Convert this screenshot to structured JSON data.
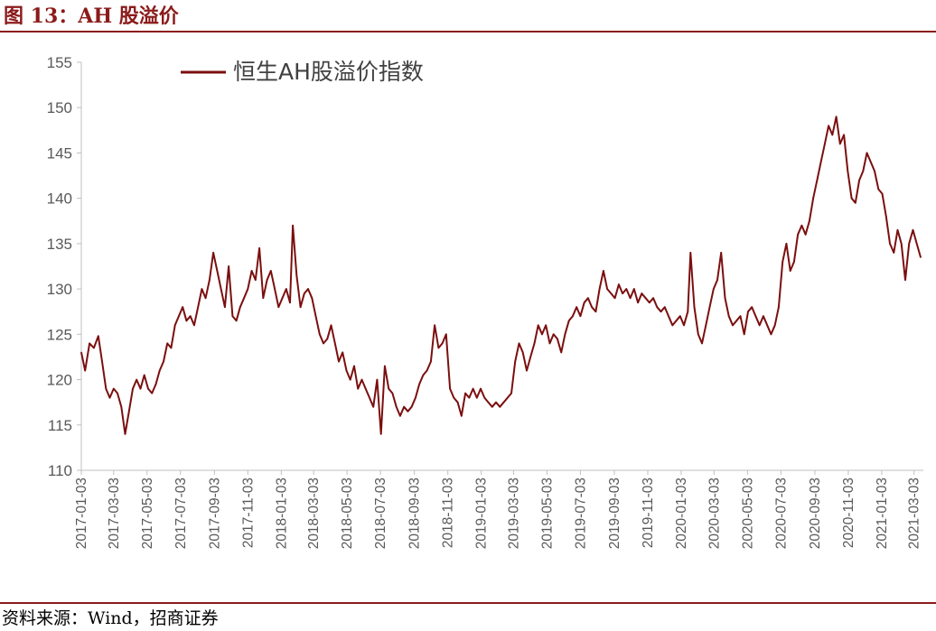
{
  "header": {
    "title": "图 13：AH 股溢价"
  },
  "footer": {
    "source": "资料来源：Wind，招商证券"
  },
  "colors": {
    "accent": "#8B1A1A",
    "series": "#7B0F0F",
    "axis": "#BFBFBF",
    "tick_text": "#595959"
  },
  "chart_data": {
    "type": "line",
    "title": "",
    "xlabel": "",
    "ylabel": "",
    "ylim": [
      110,
      155
    ],
    "yticks": [
      110,
      115,
      120,
      125,
      130,
      135,
      140,
      145,
      150,
      155
    ],
    "xlim": [
      "2017-01-03",
      "2021-03-20"
    ],
    "xticks": [
      "2017-01-03",
      "2017-03-03",
      "2017-05-03",
      "2017-07-03",
      "2017-09-03",
      "2017-11-03",
      "2018-01-03",
      "2018-03-03",
      "2018-05-03",
      "2018-07-03",
      "2018-09-03",
      "2018-11-03",
      "2019-01-03",
      "2019-03-03",
      "2019-05-03",
      "2019-07-03",
      "2019-09-03",
      "2019-11-03",
      "2020-01-03",
      "2020-03-03",
      "2020-05-03",
      "2020-07-03",
      "2020-09-03",
      "2020-11-03",
      "2021-01-03",
      "2021-03-03"
    ],
    "grid": false,
    "legend": "top-left",
    "series": [
      {
        "name": "恒生AH股溢价指数",
        "points": [
          [
            "2017-01-03",
            123.0
          ],
          [
            "2017-01-10",
            121.0
          ],
          [
            "2017-01-18",
            124.0
          ],
          [
            "2017-01-26",
            123.5
          ],
          [
            "2017-02-03",
            124.8
          ],
          [
            "2017-02-10",
            122.0
          ],
          [
            "2017-02-17",
            119.0
          ],
          [
            "2017-02-24",
            118.0
          ],
          [
            "2017-03-03",
            119.0
          ],
          [
            "2017-03-10",
            118.5
          ],
          [
            "2017-03-17",
            117.0
          ],
          [
            "2017-03-24",
            114.0
          ],
          [
            "2017-03-31",
            116.5
          ],
          [
            "2017-04-07",
            119.0
          ],
          [
            "2017-04-14",
            120.0
          ],
          [
            "2017-04-21",
            119.0
          ],
          [
            "2017-04-28",
            120.5
          ],
          [
            "2017-05-05",
            119.0
          ],
          [
            "2017-05-12",
            118.5
          ],
          [
            "2017-05-19",
            119.5
          ],
          [
            "2017-05-26",
            121.0
          ],
          [
            "2017-06-02",
            122.0
          ],
          [
            "2017-06-09",
            124.0
          ],
          [
            "2017-06-16",
            123.5
          ],
          [
            "2017-06-23",
            126.0
          ],
          [
            "2017-06-30",
            127.0
          ],
          [
            "2017-07-07",
            128.0
          ],
          [
            "2017-07-14",
            126.5
          ],
          [
            "2017-07-21",
            127.0
          ],
          [
            "2017-07-28",
            126.0
          ],
          [
            "2017-08-04",
            128.0
          ],
          [
            "2017-08-11",
            130.0
          ],
          [
            "2017-08-18",
            129.0
          ],
          [
            "2017-08-25",
            131.0
          ],
          [
            "2017-09-01",
            134.0
          ],
          [
            "2017-09-08",
            132.0
          ],
          [
            "2017-09-15",
            130.0
          ],
          [
            "2017-09-22",
            128.0
          ],
          [
            "2017-09-29",
            132.5
          ],
          [
            "2017-10-06",
            127.0
          ],
          [
            "2017-10-13",
            126.5
          ],
          [
            "2017-10-20",
            128.0
          ],
          [
            "2017-10-27",
            129.0
          ],
          [
            "2017-11-03",
            130.0
          ],
          [
            "2017-11-10",
            132.0
          ],
          [
            "2017-11-17",
            131.0
          ],
          [
            "2017-11-24",
            134.5
          ],
          [
            "2017-12-01",
            129.0
          ],
          [
            "2017-12-08",
            131.0
          ],
          [
            "2017-12-15",
            132.0
          ],
          [
            "2017-12-22",
            130.0
          ],
          [
            "2017-12-29",
            128.0
          ],
          [
            "2018-01-05",
            129.0
          ],
          [
            "2018-01-12",
            130.0
          ],
          [
            "2018-01-19",
            128.5
          ],
          [
            "2018-01-24",
            137.0
          ],
          [
            "2018-01-31",
            131.5
          ],
          [
            "2018-02-07",
            128.0
          ],
          [
            "2018-02-14",
            129.5
          ],
          [
            "2018-02-21",
            130.0
          ],
          [
            "2018-02-28",
            129.0
          ],
          [
            "2018-03-07",
            127.0
          ],
          [
            "2018-03-14",
            125.0
          ],
          [
            "2018-03-21",
            124.0
          ],
          [
            "2018-03-28",
            124.5
          ],
          [
            "2018-04-04",
            126.0
          ],
          [
            "2018-04-11",
            124.0
          ],
          [
            "2018-04-18",
            122.0
          ],
          [
            "2018-04-25",
            123.0
          ],
          [
            "2018-05-02",
            121.0
          ],
          [
            "2018-05-09",
            120.0
          ],
          [
            "2018-05-16",
            121.5
          ],
          [
            "2018-05-23",
            119.0
          ],
          [
            "2018-05-30",
            120.0
          ],
          [
            "2018-06-06",
            119.0
          ],
          [
            "2018-06-13",
            118.0
          ],
          [
            "2018-06-20",
            117.0
          ],
          [
            "2018-06-27",
            120.0
          ],
          [
            "2018-07-04",
            114.0
          ],
          [
            "2018-07-11",
            121.5
          ],
          [
            "2018-07-18",
            119.0
          ],
          [
            "2018-07-25",
            118.5
          ],
          [
            "2018-08-01",
            117.0
          ],
          [
            "2018-08-08",
            116.0
          ],
          [
            "2018-08-15",
            117.0
          ],
          [
            "2018-08-22",
            116.5
          ],
          [
            "2018-08-29",
            117.0
          ],
          [
            "2018-09-05",
            118.0
          ],
          [
            "2018-09-12",
            119.5
          ],
          [
            "2018-09-19",
            120.5
          ],
          [
            "2018-09-26",
            121.0
          ],
          [
            "2018-10-03",
            122.0
          ],
          [
            "2018-10-10",
            126.0
          ],
          [
            "2018-10-17",
            123.5
          ],
          [
            "2018-10-24",
            124.0
          ],
          [
            "2018-10-31",
            125.0
          ],
          [
            "2018-11-07",
            119.0
          ],
          [
            "2018-11-14",
            118.0
          ],
          [
            "2018-11-21",
            117.5
          ],
          [
            "2018-11-28",
            116.0
          ],
          [
            "2018-12-05",
            118.5
          ],
          [
            "2018-12-12",
            118.0
          ],
          [
            "2018-12-19",
            119.0
          ],
          [
            "2018-12-26",
            118.0
          ],
          [
            "2019-01-02",
            119.0
          ],
          [
            "2019-01-09",
            118.0
          ],
          [
            "2019-01-16",
            117.5
          ],
          [
            "2019-01-23",
            117.0
          ],
          [
            "2019-01-30",
            117.5
          ],
          [
            "2019-02-06",
            117.0
          ],
          [
            "2019-02-13",
            117.5
          ],
          [
            "2019-02-20",
            118.0
          ],
          [
            "2019-02-27",
            118.5
          ],
          [
            "2019-03-06",
            122.0
          ],
          [
            "2019-03-13",
            124.0
          ],
          [
            "2019-03-20",
            123.0
          ],
          [
            "2019-03-27",
            121.0
          ],
          [
            "2019-04-03",
            122.5
          ],
          [
            "2019-04-10",
            124.0
          ],
          [
            "2019-04-17",
            126.0
          ],
          [
            "2019-04-24",
            125.0
          ],
          [
            "2019-05-01",
            126.0
          ],
          [
            "2019-05-08",
            124.0
          ],
          [
            "2019-05-15",
            125.0
          ],
          [
            "2019-05-22",
            124.5
          ],
          [
            "2019-05-29",
            123.0
          ],
          [
            "2019-06-05",
            125.0
          ],
          [
            "2019-06-12",
            126.5
          ],
          [
            "2019-06-19",
            127.0
          ],
          [
            "2019-06-26",
            128.0
          ],
          [
            "2019-07-03",
            127.0
          ],
          [
            "2019-07-10",
            128.5
          ],
          [
            "2019-07-17",
            129.0
          ],
          [
            "2019-07-24",
            128.0
          ],
          [
            "2019-07-31",
            127.5
          ],
          [
            "2019-08-07",
            130.0
          ],
          [
            "2019-08-14",
            132.0
          ],
          [
            "2019-08-21",
            130.0
          ],
          [
            "2019-08-28",
            129.5
          ],
          [
            "2019-09-04",
            129.0
          ],
          [
            "2019-09-11",
            130.5
          ],
          [
            "2019-09-18",
            129.5
          ],
          [
            "2019-09-25",
            130.0
          ],
          [
            "2019-10-02",
            129.0
          ],
          [
            "2019-10-09",
            130.0
          ],
          [
            "2019-10-16",
            128.5
          ],
          [
            "2019-10-23",
            129.5
          ],
          [
            "2019-10-30",
            129.0
          ],
          [
            "2019-11-06",
            128.5
          ],
          [
            "2019-11-13",
            129.0
          ],
          [
            "2019-11-20",
            128.0
          ],
          [
            "2019-11-27",
            127.5
          ],
          [
            "2019-12-04",
            128.0
          ],
          [
            "2019-12-11",
            127.0
          ],
          [
            "2019-12-18",
            126.0
          ],
          [
            "2019-12-25",
            126.5
          ],
          [
            "2020-01-01",
            127.0
          ],
          [
            "2020-01-08",
            126.0
          ],
          [
            "2020-01-15",
            127.5
          ],
          [
            "2020-01-20",
            134.0
          ],
          [
            "2020-01-27",
            128.0
          ],
          [
            "2020-02-03",
            125.0
          ],
          [
            "2020-02-10",
            124.0
          ],
          [
            "2020-02-17",
            126.0
          ],
          [
            "2020-02-24",
            128.0
          ],
          [
            "2020-03-02",
            130.0
          ],
          [
            "2020-03-09",
            131.0
          ],
          [
            "2020-03-16",
            134.0
          ],
          [
            "2020-03-23",
            129.0
          ],
          [
            "2020-03-30",
            127.0
          ],
          [
            "2020-04-06",
            126.0
          ],
          [
            "2020-04-13",
            126.5
          ],
          [
            "2020-04-20",
            127.0
          ],
          [
            "2020-04-27",
            125.0
          ],
          [
            "2020-05-04",
            127.5
          ],
          [
            "2020-05-11",
            128.0
          ],
          [
            "2020-05-18",
            127.0
          ],
          [
            "2020-05-25",
            126.0
          ],
          [
            "2020-06-01",
            127.0
          ],
          [
            "2020-06-08",
            126.0
          ],
          [
            "2020-06-15",
            125.0
          ],
          [
            "2020-06-22",
            126.0
          ],
          [
            "2020-06-29",
            128.0
          ],
          [
            "2020-07-06",
            133.0
          ],
          [
            "2020-07-13",
            135.0
          ],
          [
            "2020-07-20",
            132.0
          ],
          [
            "2020-07-27",
            133.0
          ],
          [
            "2020-08-03",
            136.0
          ],
          [
            "2020-08-10",
            137.0
          ],
          [
            "2020-08-17",
            136.0
          ],
          [
            "2020-08-24",
            137.5
          ],
          [
            "2020-08-31",
            140.0
          ],
          [
            "2020-09-07",
            142.0
          ],
          [
            "2020-09-14",
            144.0
          ],
          [
            "2020-09-21",
            146.0
          ],
          [
            "2020-09-28",
            148.0
          ],
          [
            "2020-10-05",
            147.0
          ],
          [
            "2020-10-12",
            149.0
          ],
          [
            "2020-10-19",
            146.0
          ],
          [
            "2020-10-26",
            147.0
          ],
          [
            "2020-11-02",
            143.0
          ],
          [
            "2020-11-09",
            140.0
          ],
          [
            "2020-11-16",
            139.5
          ],
          [
            "2020-11-23",
            142.0
          ],
          [
            "2020-11-30",
            143.0
          ],
          [
            "2020-12-07",
            145.0
          ],
          [
            "2020-12-14",
            144.0
          ],
          [
            "2020-12-21",
            143.0
          ],
          [
            "2020-12-28",
            141.0
          ],
          [
            "2021-01-04",
            140.5
          ],
          [
            "2021-01-11",
            138.0
          ],
          [
            "2021-01-18",
            135.0
          ],
          [
            "2021-01-25",
            134.0
          ],
          [
            "2021-02-01",
            136.5
          ],
          [
            "2021-02-08",
            135.0
          ],
          [
            "2021-02-15",
            131.0
          ],
          [
            "2021-02-22",
            135.0
          ],
          [
            "2021-03-01",
            136.5
          ],
          [
            "2021-03-08",
            135.0
          ],
          [
            "2021-03-15",
            133.5
          ]
        ]
      }
    ]
  }
}
